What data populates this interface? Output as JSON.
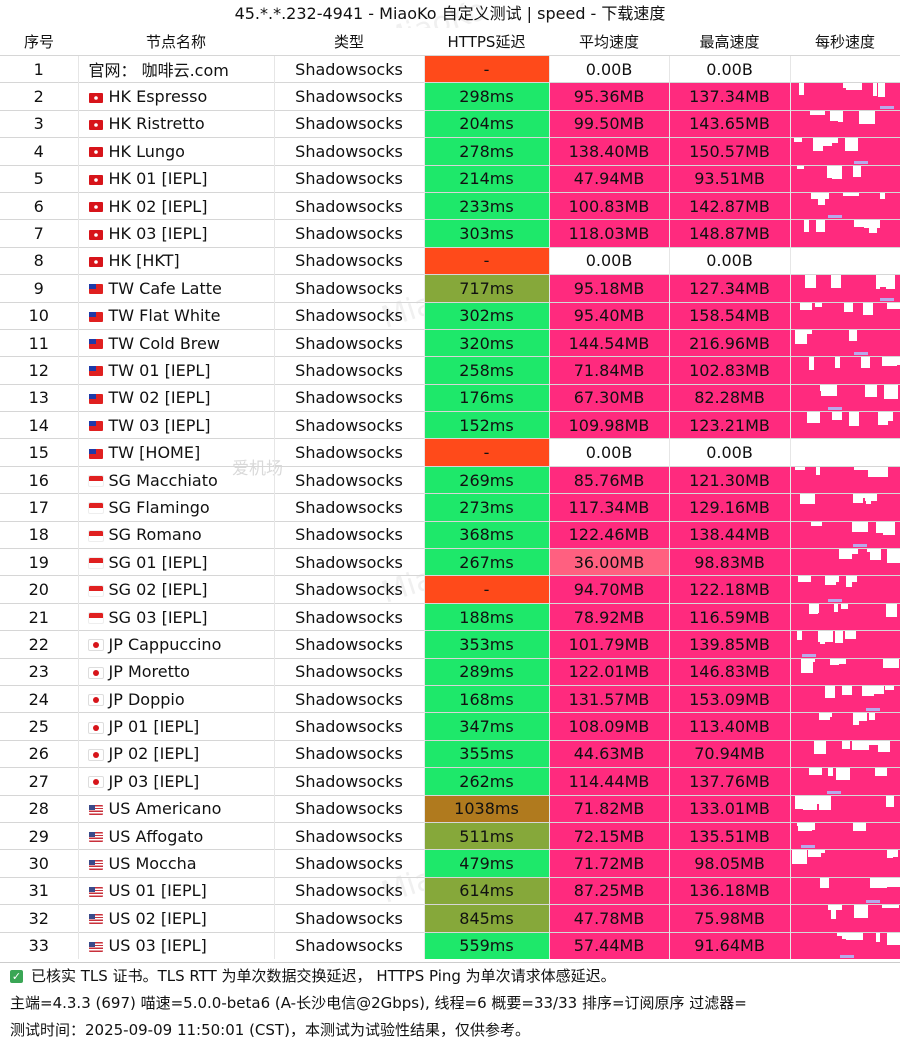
{
  "title": "45.*.*.232-4941 - MiaoKo 自定义测试 | speed - 下载速度",
  "headers": [
    "序号",
    "节点名称",
    "类型",
    "HTTPS延迟",
    "平均速度",
    "最高速度",
    "每秒速度"
  ],
  "colors": {
    "latency_fail": "#ff4a1a",
    "latency_good": "#1ee86a",
    "latency_mid": "#86a83a",
    "latency_slow": "#b07a1e",
    "speed_high": "#ff2a7e",
    "speed_mid": "#ff6080",
    "speed_zero": "#ffffff"
  },
  "rows": [
    {
      "idx": "1",
      "flag": "",
      "name": "官网： 咖啡云.com",
      "type": "Shadowsocks",
      "latency": "-",
      "lc": "latency_fail",
      "avg": "0.00B",
      "ac": "speed_zero",
      "max": "0.00B",
      "mc": "speed_zero"
    },
    {
      "idx": "2",
      "flag": "hk",
      "name": "HK   Espresso",
      "type": "Shadowsocks",
      "latency": "298ms",
      "lc": "latency_good",
      "avg": "95.36MB",
      "ac": "speed_high",
      "max": "137.34MB",
      "mc": "speed_high"
    },
    {
      "idx": "3",
      "flag": "hk",
      "name": "HK   Ristretto",
      "type": "Shadowsocks",
      "latency": "204ms",
      "lc": "latency_good",
      "avg": "99.50MB",
      "ac": "speed_high",
      "max": "143.65MB",
      "mc": "speed_high"
    },
    {
      "idx": "4",
      "flag": "hk",
      "name": "HK   Lungo",
      "type": "Shadowsocks",
      "latency": "278ms",
      "lc": "latency_good",
      "avg": "138.40MB",
      "ac": "speed_high",
      "max": "150.57MB",
      "mc": "speed_high"
    },
    {
      "idx": "5",
      "flag": "hk",
      "name": "HK 01 [IEPL]",
      "type": "Shadowsocks",
      "latency": "214ms",
      "lc": "latency_good",
      "avg": "47.94MB",
      "ac": "speed_high",
      "max": "93.51MB",
      "mc": "speed_high"
    },
    {
      "idx": "6",
      "flag": "hk",
      "name": "HK 02 [IEPL]",
      "type": "Shadowsocks",
      "latency": "233ms",
      "lc": "latency_good",
      "avg": "100.83MB",
      "ac": "speed_high",
      "max": "142.87MB",
      "mc": "speed_high"
    },
    {
      "idx": "7",
      "flag": "hk",
      "name": "HK 03 [IEPL]",
      "type": "Shadowsocks",
      "latency": "303ms",
      "lc": "latency_good",
      "avg": "118.03MB",
      "ac": "speed_high",
      "max": "148.87MB",
      "mc": "speed_high"
    },
    {
      "idx": "8",
      "flag": "hk",
      "name": "HK   [HKT]",
      "type": "Shadowsocks",
      "latency": "-",
      "lc": "latency_fail",
      "avg": "0.00B",
      "ac": "speed_zero",
      "max": "0.00B",
      "mc": "speed_zero"
    },
    {
      "idx": "9",
      "flag": "tw",
      "name": "TW  Cafe Latte",
      "type": "Shadowsocks",
      "latency": "717ms",
      "lc": "latency_mid",
      "avg": "95.18MB",
      "ac": "speed_high",
      "max": "127.34MB",
      "mc": "speed_high"
    },
    {
      "idx": "10",
      "flag": "tw",
      "name": "TW  Flat White",
      "type": "Shadowsocks",
      "latency": "302ms",
      "lc": "latency_good",
      "avg": "95.40MB",
      "ac": "speed_high",
      "max": "158.54MB",
      "mc": "speed_high"
    },
    {
      "idx": "11",
      "flag": "tw",
      "name": "TW  Cold Brew",
      "type": "Shadowsocks",
      "latency": "320ms",
      "lc": "latency_good",
      "avg": "144.54MB",
      "ac": "speed_high",
      "max": "216.96MB",
      "mc": "speed_high"
    },
    {
      "idx": "12",
      "flag": "tw",
      "name": "TW 01 [IEPL]",
      "type": "Shadowsocks",
      "latency": "258ms",
      "lc": "latency_good",
      "avg": "71.84MB",
      "ac": "speed_high",
      "max": "102.83MB",
      "mc": "speed_high"
    },
    {
      "idx": "13",
      "flag": "tw",
      "name": "TW 02 [IEPL]",
      "type": "Shadowsocks",
      "latency": "176ms",
      "lc": "latency_good",
      "avg": "67.30MB",
      "ac": "speed_high",
      "max": "82.28MB",
      "mc": "speed_high"
    },
    {
      "idx": "14",
      "flag": "tw",
      "name": "TW 03 [IEPL]",
      "type": "Shadowsocks",
      "latency": "152ms",
      "lc": "latency_good",
      "avg": "109.98MB",
      "ac": "speed_high",
      "max": "123.21MB",
      "mc": "speed_high"
    },
    {
      "idx": "15",
      "flag": "tw",
      "name": "TW  [HOME]",
      "type": "Shadowsocks",
      "latency": "-",
      "lc": "latency_fail",
      "avg": "0.00B",
      "ac": "speed_zero",
      "max": "0.00B",
      "mc": "speed_zero"
    },
    {
      "idx": "16",
      "flag": "sg",
      "name": "SG   Macchiato",
      "type": "Shadowsocks",
      "latency": "269ms",
      "lc": "latency_good",
      "avg": "85.76MB",
      "ac": "speed_high",
      "max": "121.30MB",
      "mc": "speed_high"
    },
    {
      "idx": "17",
      "flag": "sg",
      "name": "SG   Flamingo",
      "type": "Shadowsocks",
      "latency": "273ms",
      "lc": "latency_good",
      "avg": "117.34MB",
      "ac": "speed_high",
      "max": "129.16MB",
      "mc": "speed_high"
    },
    {
      "idx": "18",
      "flag": "sg",
      "name": "SG   Romano",
      "type": "Shadowsocks",
      "latency": "368ms",
      "lc": "latency_good",
      "avg": "122.46MB",
      "ac": "speed_high",
      "max": "138.44MB",
      "mc": "speed_high"
    },
    {
      "idx": "19",
      "flag": "sg",
      "name": "SG 01 [IEPL]",
      "type": "Shadowsocks",
      "latency": "267ms",
      "lc": "latency_good",
      "avg": "36.00MB",
      "ac": "speed_mid",
      "max": "98.83MB",
      "mc": "speed_high"
    },
    {
      "idx": "20",
      "flag": "sg",
      "name": "SG 02 [IEPL]",
      "type": "Shadowsocks",
      "latency": "-",
      "lc": "latency_fail",
      "avg": "94.70MB",
      "ac": "speed_high",
      "max": "122.18MB",
      "mc": "speed_high"
    },
    {
      "idx": "21",
      "flag": "sg",
      "name": "SG 03 [IEPL]",
      "type": "Shadowsocks",
      "latency": "188ms",
      "lc": "latency_good",
      "avg": "78.92MB",
      "ac": "speed_high",
      "max": "116.59MB",
      "mc": "speed_high"
    },
    {
      "idx": "22",
      "flag": "jp",
      "name": "JP    Cappuccino",
      "type": "Shadowsocks",
      "latency": "353ms",
      "lc": "latency_good",
      "avg": "101.79MB",
      "ac": "speed_high",
      "max": "139.85MB",
      "mc": "speed_high"
    },
    {
      "idx": "23",
      "flag": "jp",
      "name": "JP    Moretto",
      "type": "Shadowsocks",
      "latency": "289ms",
      "lc": "latency_good",
      "avg": "122.01MB",
      "ac": "speed_high",
      "max": "146.83MB",
      "mc": "speed_high"
    },
    {
      "idx": "24",
      "flag": "jp",
      "name": "JP    Doppio",
      "type": "Shadowsocks",
      "latency": "168ms",
      "lc": "latency_good",
      "avg": "131.57MB",
      "ac": "speed_high",
      "max": "153.09MB",
      "mc": "speed_high"
    },
    {
      "idx": "25",
      "flag": "jp",
      "name": "JP 01 [IEPL]",
      "type": "Shadowsocks",
      "latency": "347ms",
      "lc": "latency_good",
      "avg": "108.09MB",
      "ac": "speed_high",
      "max": "113.40MB",
      "mc": "speed_high"
    },
    {
      "idx": "26",
      "flag": "jp",
      "name": "JP 02 [IEPL]",
      "type": "Shadowsocks",
      "latency": "355ms",
      "lc": "latency_good",
      "avg": "44.63MB",
      "ac": "speed_high",
      "max": "70.94MB",
      "mc": "speed_high"
    },
    {
      "idx": "27",
      "flag": "jp",
      "name": "JP 03 [IEPL]",
      "type": "Shadowsocks",
      "latency": "262ms",
      "lc": "latency_good",
      "avg": "114.44MB",
      "ac": "speed_high",
      "max": "137.76MB",
      "mc": "speed_high"
    },
    {
      "idx": "28",
      "flag": "us",
      "name": "US   Americano",
      "type": "Shadowsocks",
      "latency": "1038ms",
      "lc": "latency_slow",
      "avg": "71.82MB",
      "ac": "speed_high",
      "max": "133.01MB",
      "mc": "speed_high"
    },
    {
      "idx": "29",
      "flag": "us",
      "name": "US   Affogato",
      "type": "Shadowsocks",
      "latency": "511ms",
      "lc": "latency_mid",
      "avg": "72.15MB",
      "ac": "speed_high",
      "max": "135.51MB",
      "mc": "speed_high"
    },
    {
      "idx": "30",
      "flag": "us",
      "name": "US   Moccha",
      "type": "Shadowsocks",
      "latency": "479ms",
      "lc": "latency_good",
      "avg": "71.72MB",
      "ac": "speed_high",
      "max": "98.05MB",
      "mc": "speed_high"
    },
    {
      "idx": "31",
      "flag": "us",
      "name": "US 01 [IEPL]",
      "type": "Shadowsocks",
      "latency": "614ms",
      "lc": "latency_mid",
      "avg": "87.25MB",
      "ac": "speed_high",
      "max": "136.18MB",
      "mc": "speed_high"
    },
    {
      "idx": "32",
      "flag": "us",
      "name": "US 02 [IEPL]",
      "type": "Shadowsocks",
      "latency": "845ms",
      "lc": "latency_mid",
      "avg": "47.78MB",
      "ac": "speed_high",
      "max": "75.98MB",
      "mc": "speed_high"
    },
    {
      "idx": "33",
      "flag": "us",
      "name": "US 03 [IEPL]",
      "type": "Shadowsocks",
      "latency": "559ms",
      "lc": "latency_good",
      "avg": "57.44MB",
      "ac": "speed_high",
      "max": "91.64MB",
      "mc": "speed_high"
    }
  ],
  "footer": {
    "line1": "已核实 TLS 证书。TLS RTT 为单次数据交换延迟， HTTPS Ping 为单次请求体感延迟。",
    "line2": "主端=4.3.3 (697) 喵速=5.0.0-beta6 (A-长沙电信@2Gbps), 线程=6 概要=33/33 排序=订阅原序 过滤器=",
    "line3": "测试时间：2025-09-09 11:50:01 (CST)，本测试为试验性结果，仅供参考。"
  },
  "watermark_text": "MiaoKo",
  "watermark_logo_text": "爱机场"
}
